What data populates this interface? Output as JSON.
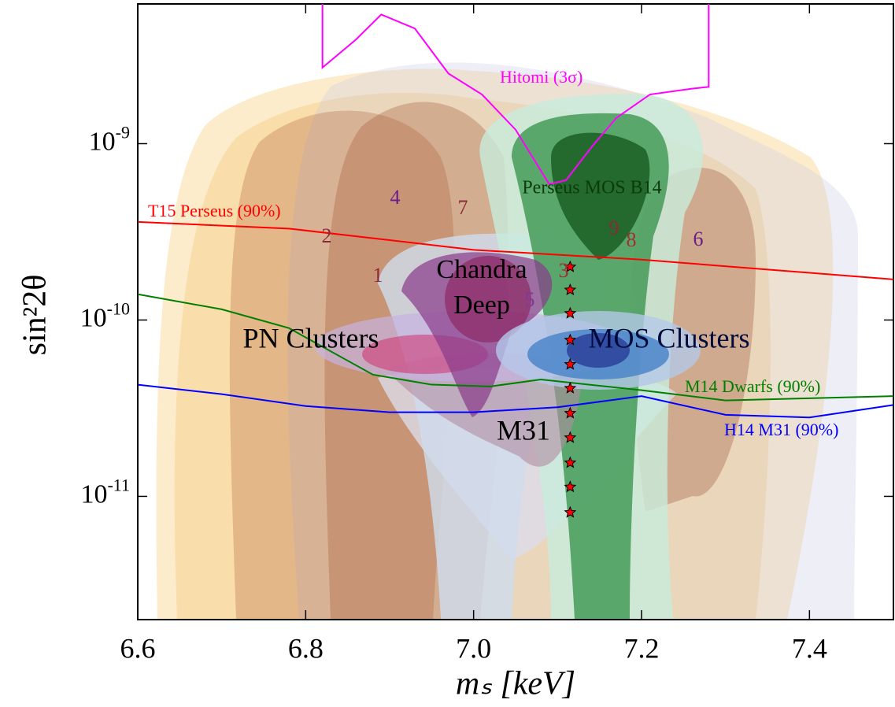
{
  "chart_data": {
    "type": "line",
    "xlabel": "mₛ [keV]",
    "ylabel": "sin²2θ",
    "xlim": [
      6.6,
      7.5
    ],
    "ylim": [
      2e-12,
      6.2e-09
    ],
    "ylog": true,
    "xticks": [
      6.6,
      6.8,
      {
        "value": 7,
        "label": "7.0"
      },
      7.2,
      7.4
    ],
    "yticks": [
      {
        "value": 1e-11,
        "label": "10-11"
      },
      {
        "value": 1e-10,
        "label": "10-10"
      },
      {
        "value": 1e-09,
        "label": "10-9"
      }
    ],
    "series": [
      {
        "name": "T15 Perseus (90%)",
        "color": "#ff0000",
        "x": [
          6.6,
          6.78,
          7.0,
          7.2,
          7.5
        ],
        "values": [
          3.6e-10,
          3.3e-10,
          2.5e-10,
          2.2e-10,
          1.7e-10
        ]
      },
      {
        "name": "M14 Dwarfs (90%)",
        "color": "#008000",
        "x": [
          6.6,
          6.7,
          6.78,
          6.88,
          6.95,
          7.02,
          7.08,
          7.2,
          7.3,
          7.4,
          7.5
        ],
        "values": [
          1.4e-10,
          1.15e-10,
          9e-11,
          4.9e-11,
          4.3e-11,
          4.2e-11,
          4.6e-11,
          4e-11,
          3.5e-11,
          3.6e-11,
          3.7e-11
        ]
      },
      {
        "name": "H14 M31 (90%)",
        "color": "#0000ff",
        "x": [
          6.6,
          6.7,
          6.8,
          6.9,
          7.0,
          7.1,
          7.2,
          7.3,
          7.4,
          7.5
        ],
        "values": [
          4.3e-11,
          3.8e-11,
          3.25e-11,
          3e-11,
          3e-11,
          3.2e-11,
          3.7e-11,
          2.9e-11,
          2.8e-11,
          3.3e-11
        ]
      },
      {
        "name": "Hitomi (3σ)",
        "color": "#ff00ff",
        "x": [
          6.82,
          6.82,
          6.86,
          6.89,
          6.93,
          6.97,
          7.01,
          7.05,
          7.09,
          7.11,
          7.14,
          7.17,
          7.21,
          7.26,
          7.28,
          7.28
        ],
        "values": [
          6.2e-09,
          2.7e-09,
          3.9e-09,
          5.4e-09,
          4.5e-09,
          2.5e-09,
          1.9e-09,
          1.2e-09,
          5.9e-10,
          6.2e-10,
          9.5e-10,
          1.4e-09,
          1.9e-09,
          2.05e-09,
          2.1e-09,
          6.2e-09
        ]
      },
      {
        "marker": "star",
        "color": "#ff0000",
        "x": [
          7.115,
          7.115,
          7.115,
          7.115,
          7.115,
          7.115,
          7.115,
          7.115,
          7.115,
          7.115,
          7.115
        ],
        "values": [
          2e-10,
          1.48e-10,
          1.09e-10,
          7.7e-11,
          5.6e-11,
          4.1e-11,
          2.96e-11,
          2.15e-11,
          1.55e-11,
          1.13e-11,
          8.1e-12
        ]
      }
    ],
    "annotations": [
      "Perseus MOS B14",
      "Chandra",
      "Deep",
      "PN Clusters",
      "MOS Clusters",
      "M31",
      "1",
      "2",
      "3",
      "4",
      "5",
      "6",
      "7",
      "8",
      "9"
    ]
  }
}
